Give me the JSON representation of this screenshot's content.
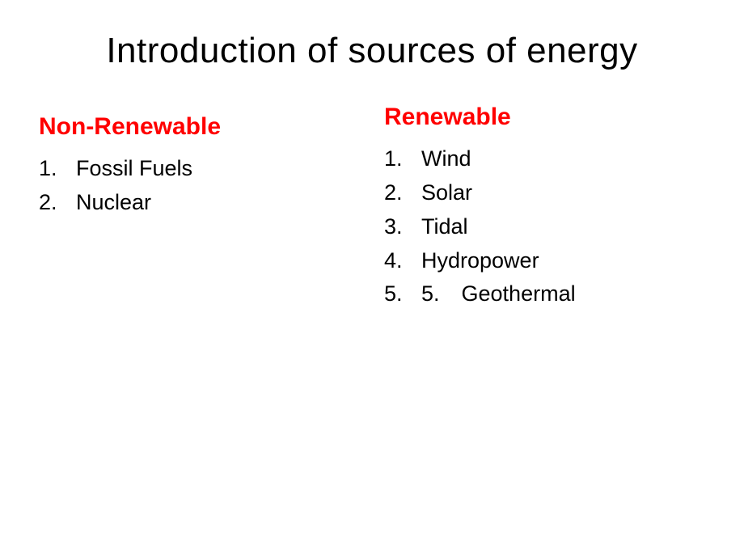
{
  "title": "Introduction of sources of energy",
  "colors": {
    "heading": "#ff0000",
    "text": "#000000",
    "background": "#ffffff"
  },
  "typography": {
    "title_fontsize": 44,
    "heading_fontsize": 30,
    "item_fontsize": 27,
    "font_family": "Arial"
  },
  "left": {
    "heading": "Non-Renewable",
    "items": [
      "Fossil Fuels",
      "Nuclear"
    ]
  },
  "right": {
    "heading": "Renewable",
    "items": [
      "Wind",
      "Solar",
      "Tidal",
      "Hydropower",
      "5. Geothermal"
    ]
  }
}
